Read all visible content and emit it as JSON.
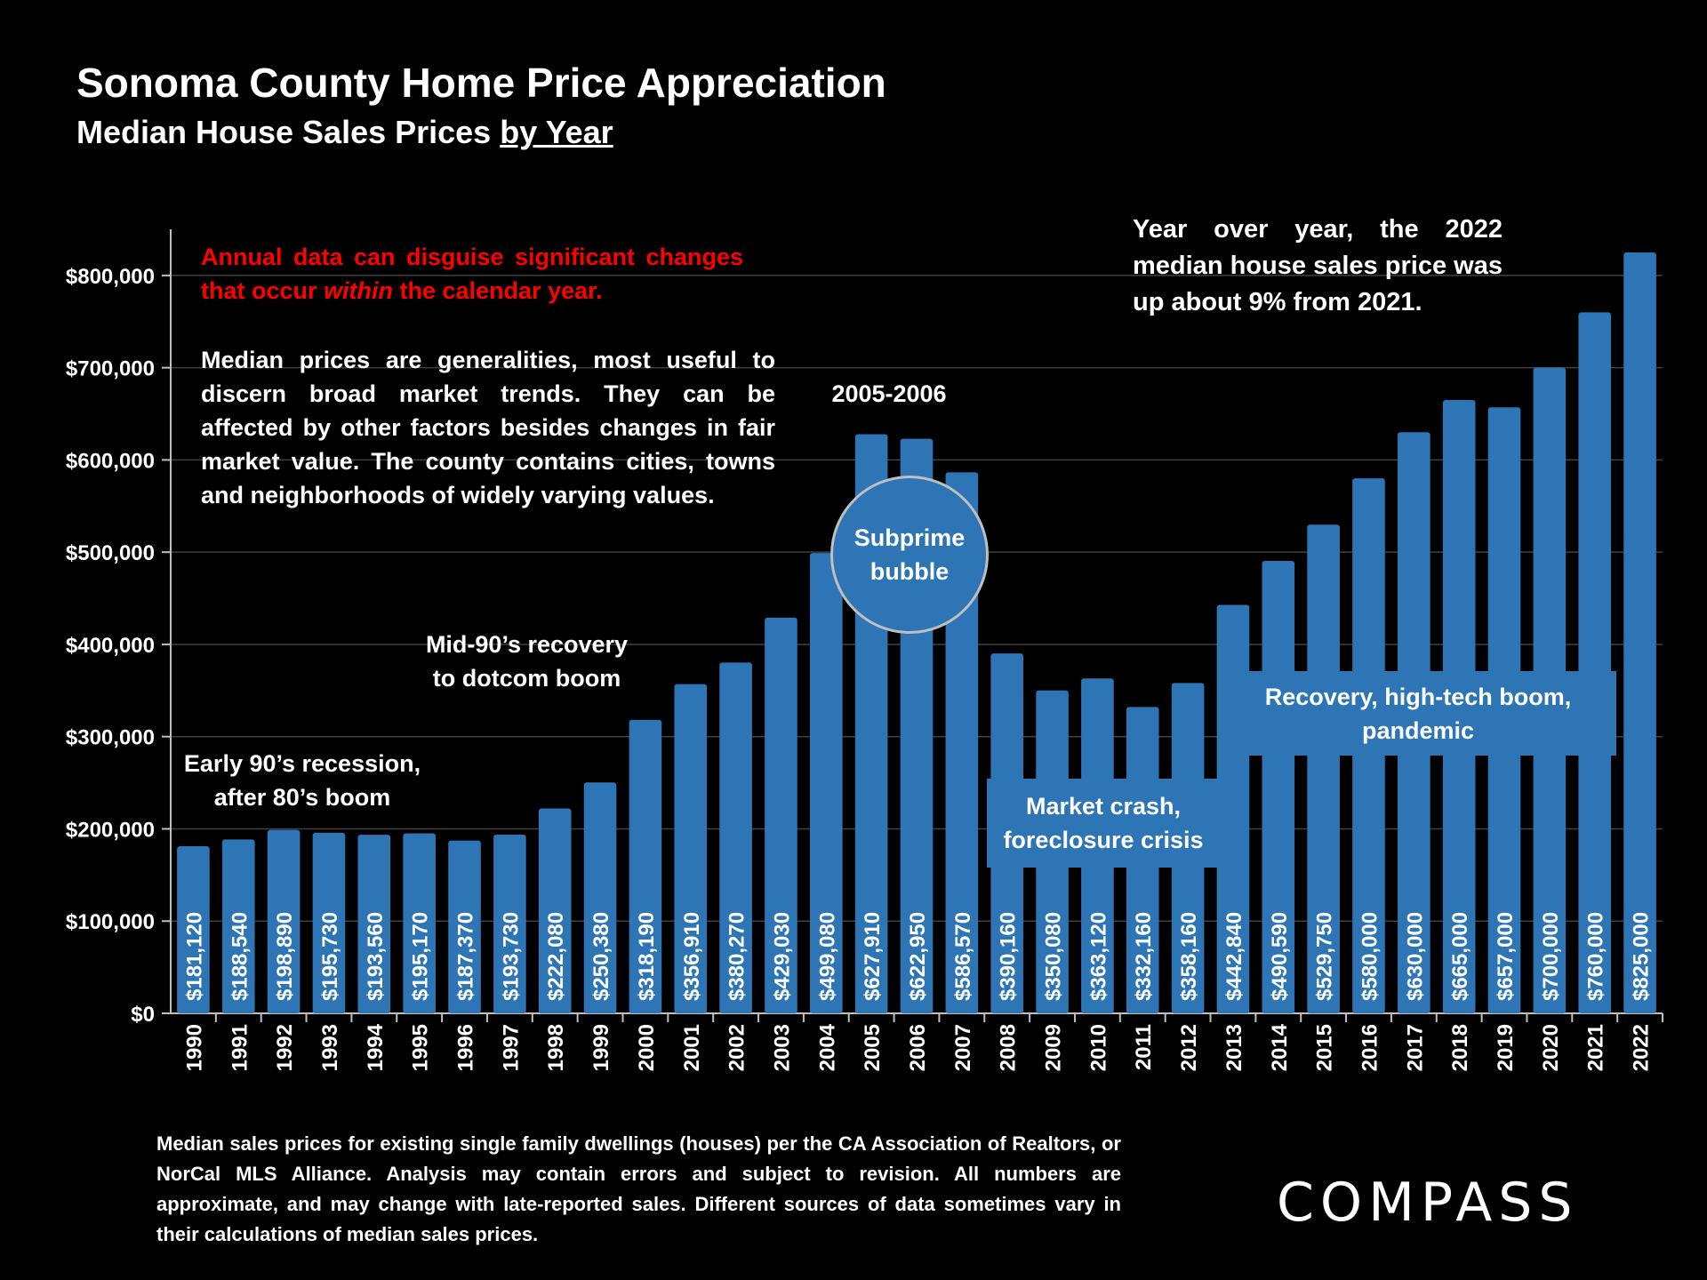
{
  "title": "Sonoma County Home Price Appreciation",
  "subtitle_main": "Median House Sales Prices ",
  "subtitle_underlined": "by Year",
  "note_red_part1": "Annual data can disguise significant changes that occur ",
  "note_red_emph": "within",
  "note_red_part2": " the calendar year.",
  "note_white": "Median prices are generalities, most useful to discern broad market trends. They can be affected by other factors besides changes in fair market value. The county contains cities, towns and neighborhoods of widely varying values.",
  "yoy_note": "Year over year, the 2022 median house sales price was up about 9% from 2021.",
  "annotations": {
    "early90s_line1": "Early 90’s recession,",
    "early90s_line2": "after 80’s boom",
    "mid90s_line1": "Mid-90’s recovery",
    "mid90s_line2": "to dotcom boom",
    "period_2005": "2005-2006",
    "bubble_line1": "Subprime",
    "bubble_line2": "bubble",
    "crash_line1": "Market crash,",
    "crash_line2": "foreclosure crisis",
    "recovery_line1": "Recovery, high-tech boom,",
    "recovery_line2": "pandemic"
  },
  "footnote": "Median sales prices for existing single family dwellings (houses) per the CA Association of Realtors, or NorCal MLS Alliance. Analysis may contain errors and subject to revision. All numbers are approximate, and may change with late-reported sales. Different sources of data sometimes vary in their calculations of median sales prices.",
  "logo_text": "COMPASS",
  "colors": {
    "bar": "#2e75b6",
    "background": "#000000",
    "accent_red": "#ff0000",
    "grid": "#404040"
  },
  "chart_data": {
    "type": "bar",
    "title": "Sonoma County Home Price Appreciation",
    "subtitle": "Median House Sales Prices by Year",
    "xlabel": "",
    "ylabel": "",
    "ylim": [
      0,
      850000
    ],
    "grid": true,
    "categories": [
      "1990",
      "1991",
      "1992",
      "1993",
      "1994",
      "1995",
      "1996",
      "1997",
      "1998",
      "1999",
      "2000",
      "2001",
      "2002",
      "2003",
      "2004",
      "2005",
      "2006",
      "2007",
      "2008",
      "2009",
      "2010",
      "2011",
      "2012",
      "2013",
      "2014",
      "2015",
      "2016",
      "2017",
      "2018",
      "2019",
      "2020",
      "2021",
      "2022"
    ],
    "values": [
      181120,
      188540,
      198890,
      195730,
      193560,
      195170,
      187370,
      193730,
      222080,
      250380,
      318190,
      356910,
      380270,
      429030,
      499080,
      627910,
      622950,
      586570,
      390160,
      350080,
      363120,
      332160,
      358160,
      442840,
      490590,
      529750,
      580000,
      630000,
      665000,
      657000,
      700000,
      760000,
      825000
    ],
    "value_labels": [
      "$181,120",
      "$188,540",
      "$198,890",
      "$195,730",
      "$193,560",
      "$195,170",
      "$187,370",
      "$193,730",
      "$222,080",
      "$250,380",
      "$318,190",
      "$356,910",
      "$380,270",
      "$429,030",
      "$499,080",
      "$627,910",
      "$622,950",
      "$586,570",
      "$390,160",
      "$350,080",
      "$363,120",
      "$332,160",
      "$358,160",
      "$442,840",
      "$490,590",
      "$529,750",
      "$580,000",
      "$630,000",
      "$665,000",
      "$657,000",
      "$700,000",
      "$760,000",
      "$825,000"
    ],
    "y_ticks": [
      0,
      100000,
      200000,
      300000,
      400000,
      500000,
      600000,
      700000,
      800000
    ],
    "y_tick_labels": [
      "$0",
      "$100,000",
      "$200,000",
      "$300,000",
      "$400,000",
      "$500,000",
      "$600,000",
      "$700,000",
      "$800,000"
    ]
  }
}
